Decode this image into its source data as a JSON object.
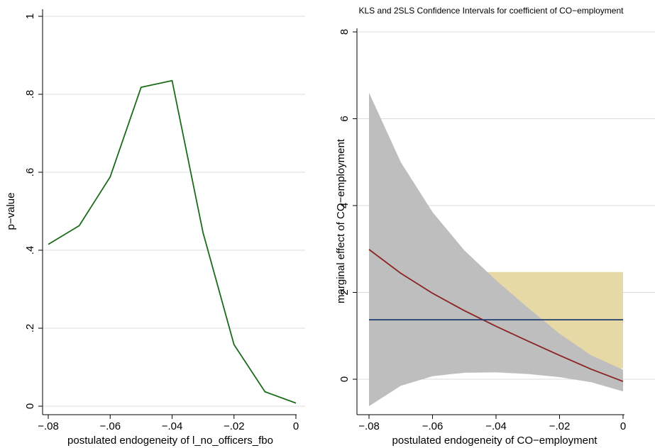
{
  "chart_data": [
    {
      "type": "line",
      "title": "",
      "xlabel": "postulated endogeneity of l_no_officers_fbo",
      "ylabel": "p−value",
      "xlim": [
        -0.08,
        0
      ],
      "ylim": [
        0,
        1
      ],
      "grid": true,
      "x_ticks": [
        "−.08",
        "−.06",
        "−.04",
        "−.02",
        "0"
      ],
      "y_ticks": [
        "0",
        ".2",
        ".4",
        ".6",
        ".8",
        "1"
      ],
      "x_tick_values": [
        -0.08,
        -0.06,
        -0.04,
        -0.02,
        0
      ],
      "y_tick_values": [
        0,
        0.2,
        0.4,
        0.6,
        0.8,
        1
      ],
      "series": [
        {
          "color": "#1a6b1a",
          "x": [
            -0.08,
            -0.07,
            -0.06,
            -0.05,
            -0.04,
            -0.03,
            -0.02,
            -0.01,
            0
          ],
          "y": [
            0.415,
            0.463,
            0.588,
            0.818,
            0.835,
            0.445,
            0.158,
            0.037,
            0.008
          ]
        }
      ]
    },
    {
      "type": "area",
      "title": "KLS and 2SLS Confidence Intervals for coefficient of CO−employment",
      "xlabel": "postulated endogeneity of CO−employment",
      "ylabel": "marginal effect of CO−employment",
      "xlim": [
        -0.08,
        0
      ],
      "ylim": [
        -0.6,
        8
      ],
      "grid": true,
      "x_ticks": [
        "−.08",
        "−.06",
        "−.04",
        "−.02",
        "0"
      ],
      "y_ticks": [
        "0",
        "2",
        "4",
        "6",
        "8"
      ],
      "x_tick_values": [
        -0.08,
        -0.06,
        -0.04,
        -0.02,
        0
      ],
      "y_tick_values": [
        0,
        2,
        4,
        6,
        8
      ],
      "bands": [
        {
          "color": "#e6d9a6",
          "x": [
            -0.045,
            0
          ],
          "upper": [
            2.47,
            2.47
          ],
          "lower": [
            0.25,
            0.25
          ]
        },
        {
          "color": "#bebebe",
          "x": [
            -0.08,
            -0.07,
            -0.06,
            -0.05,
            -0.04,
            -0.03,
            -0.02,
            -0.01,
            0
          ],
          "upper": [
            6.6,
            5.0,
            3.85,
            2.97,
            2.28,
            1.65,
            1.05,
            0.55,
            0.22
          ],
          "lower": [
            -0.62,
            -0.15,
            0.07,
            0.15,
            0.16,
            0.12,
            0.05,
            -0.07,
            -0.28
          ]
        }
      ],
      "series": [
        {
          "color": "#8b2323",
          "x": [
            -0.08,
            -0.07,
            -0.06,
            -0.05,
            -0.04,
            -0.03,
            -0.02,
            -0.01,
            0
          ],
          "y": [
            2.99,
            2.44,
            1.98,
            1.58,
            1.22,
            0.88,
            0.55,
            0.23,
            -0.05
          ]
        },
        {
          "color": "#1f3d6e",
          "x": [
            -0.08,
            0
          ],
          "y": [
            1.37,
            1.37
          ]
        }
      ]
    }
  ]
}
